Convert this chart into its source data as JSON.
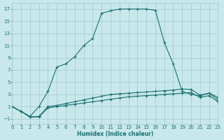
{
  "xlabel": "Humidex (Indice chaleur)",
  "bg_color": "#c8e8ec",
  "grid_color": "#a0c8cc",
  "line_color": "#1a7070",
  "xlim": [
    0,
    23
  ],
  "ylim": [
    -1.8,
    18
  ],
  "yticks": [
    -1,
    1,
    3,
    5,
    7,
    9,
    11,
    13,
    15,
    17
  ],
  "xticks": [
    0,
    1,
    2,
    3,
    4,
    5,
    6,
    7,
    8,
    9,
    10,
    11,
    12,
    13,
    14,
    15,
    16,
    17,
    18,
    19,
    20,
    21,
    22,
    23
  ],
  "line1_x": [
    0,
    1,
    2,
    3,
    4,
    5,
    6,
    7,
    8,
    9,
    10,
    11,
    12,
    13,
    14,
    15,
    16,
    17,
    18,
    19,
    20,
    21,
    22,
    23
  ],
  "line1_y": [
    1.0,
    0.2,
    -0.6,
    1.0,
    3.5,
    7.5,
    8.0,
    9.2,
    11.0,
    12.2,
    16.3,
    16.7,
    17.0,
    17.0,
    17.0,
    17.0,
    16.8,
    11.5,
    8.0,
    3.5,
    3.0,
    2.8,
    3.2,
    2.5
  ],
  "line2_x": [
    0,
    1,
    2,
    3,
    4,
    5,
    6,
    7,
    8,
    9,
    10,
    11,
    12,
    13,
    14,
    15,
    16,
    17,
    18,
    19,
    20,
    21,
    22,
    23
  ],
  "line2_y": [
    1.0,
    0.2,
    -0.7,
    -0.6,
    1.0,
    1.2,
    1.5,
    1.8,
    2.1,
    2.4,
    2.7,
    3.0,
    3.1,
    3.2,
    3.3,
    3.4,
    3.5,
    3.6,
    3.7,
    3.9,
    3.8,
    2.9,
    3.2,
    2.1
  ],
  "line3_x": [
    0,
    1,
    2,
    3,
    4,
    5,
    6,
    7,
    8,
    9,
    10,
    11,
    12,
    13,
    14,
    15,
    16,
    17,
    18,
    19,
    20,
    21,
    22,
    23
  ],
  "line3_y": [
    1.0,
    0.2,
    -0.7,
    -0.7,
    0.8,
    1.0,
    1.2,
    1.4,
    1.6,
    1.8,
    2.0,
    2.2,
    2.4,
    2.6,
    2.7,
    2.8,
    2.9,
    3.0,
    3.1,
    3.2,
    3.3,
    2.5,
    2.8,
    1.8
  ]
}
